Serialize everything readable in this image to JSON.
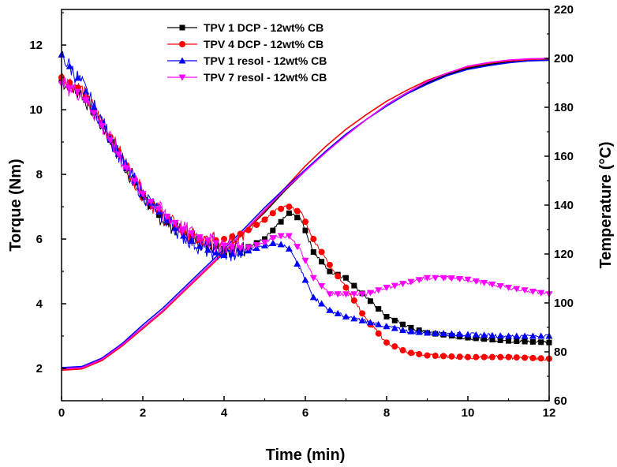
{
  "chart_data": {
    "type": "line",
    "title": "",
    "xlabel": "Time (min)",
    "ylabel_left": "Torque (Nm)",
    "ylabel_right": "Temperature (°C)",
    "xlim": [
      0,
      12
    ],
    "ylim_left": [
      1,
      13.1
    ],
    "ylim_right": [
      60,
      220
    ],
    "x_ticks": [
      0,
      2,
      4,
      6,
      8,
      10,
      12
    ],
    "y_left_ticks": [
      2,
      4,
      6,
      8,
      10,
      12
    ],
    "y_right_ticks": [
      60,
      80,
      100,
      120,
      140,
      160,
      180,
      200,
      220
    ],
    "grid": false,
    "legend_position": "top-center",
    "temperature_series": [
      {
        "name": "TPV 1 DCP - 12wt% CB",
        "color": "#000000",
        "axis": "right",
        "x": [
          0,
          0.5,
          1,
          1.5,
          2,
          2.5,
          3,
          3.5,
          4,
          4.5,
          5,
          5.5,
          6,
          6.5,
          7,
          7.5,
          8,
          8.5,
          9,
          9.5,
          10,
          10.5,
          11,
          11.5,
          12
        ],
        "y": [
          73,
          73.5,
          77,
          83,
          90,
          97,
          105,
          113,
          121,
          129,
          137,
          146,
          154,
          162,
          169,
          175,
          181,
          186,
          190,
          193.5,
          196,
          197.5,
          198.5,
          199,
          199.2
        ]
      },
      {
        "name": "TPV 4 DCP - 12wt% CB",
        "color": "#ff0000",
        "axis": "right",
        "x": [
          0,
          0.5,
          1,
          1.5,
          2,
          2.5,
          3,
          3.5,
          4,
          4.5,
          5,
          5.5,
          6,
          6.5,
          7,
          7.5,
          8,
          8.5,
          9,
          9.5,
          10,
          10.5,
          11,
          11.5,
          12
        ],
        "y": [
          72.5,
          73,
          76.5,
          82.5,
          89.5,
          96.5,
          104.5,
          112.5,
          120.5,
          129,
          137.5,
          147,
          156,
          164,
          171,
          177,
          182.5,
          187,
          191,
          194,
          196.5,
          198,
          199,
          199.5,
          199.8
        ]
      },
      {
        "name": "TPV 1 resol - 12wt% CB",
        "color": "#0000ff",
        "axis": "right",
        "x": [
          0,
          0.5,
          1,
          1.5,
          2,
          2.5,
          3,
          3.5,
          4,
          4.5,
          5,
          5.5,
          6,
          6.5,
          7,
          7.5,
          8,
          8.5,
          9,
          9.5,
          10,
          10.5,
          11,
          11.5,
          12
        ],
        "y": [
          73.5,
          74,
          77.5,
          83.5,
          91,
          98,
          106,
          114,
          122,
          130.5,
          139,
          147,
          154.5,
          162,
          169,
          175,
          180.5,
          185.5,
          189.5,
          193,
          195.5,
          197,
          198.2,
          199,
          199.3
        ]
      },
      {
        "name": "TPV 7 resol - 12wt% CB",
        "color": "#ff00ff",
        "axis": "right",
        "x": [
          0,
          0.5,
          1,
          1.5,
          2,
          2.5,
          3,
          3.5,
          4,
          4.5,
          5,
          5.5,
          6,
          6.5,
          7,
          7.5,
          8,
          8.5,
          9,
          9.5,
          10,
          10.5,
          11,
          11.5,
          12
        ],
        "y": [
          73,
          73.5,
          77,
          83,
          90,
          97,
          105,
          113,
          121,
          129.5,
          138,
          146.5,
          154,
          161.5,
          168.5,
          175,
          181,
          186,
          190.5,
          194,
          196.8,
          198.3,
          199.3,
          199.8,
          200
        ]
      }
    ],
    "series": [
      {
        "name": "TPV 1 DCP - 12wt% CB",
        "color": "#000000",
        "marker": "square",
        "axis": "left",
        "x": [
          0,
          0.5,
          1,
          1.5,
          2,
          2.5,
          3,
          3.5,
          4,
          4.5,
          5,
          5.3,
          5.6,
          5.9,
          6.2,
          6.6,
          7,
          7.5,
          8,
          8.5,
          9,
          10,
          11,
          12
        ],
        "y": [
          10.9,
          10.5,
          9.5,
          8.4,
          7.3,
          6.6,
          6.2,
          5.9,
          5.7,
          5.7,
          6.0,
          6.4,
          6.8,
          6.6,
          5.6,
          5.0,
          4.8,
          4.2,
          3.6,
          3.3,
          3.1,
          2.95,
          2.85,
          2.8
        ]
      },
      {
        "name": "TPV 4 DCP - 12wt% CB",
        "color": "#ff0000",
        "marker": "circle",
        "axis": "left",
        "x": [
          0,
          0.5,
          1,
          1.5,
          2,
          2.5,
          3,
          3.5,
          4,
          4.5,
          5,
          5.3,
          5.6,
          5.9,
          6.2,
          6.6,
          7,
          7.5,
          8,
          8.5,
          9,
          10,
          11,
          12
        ],
        "y": [
          11.0,
          10.6,
          9.6,
          8.5,
          7.4,
          6.7,
          6.2,
          5.9,
          6.0,
          6.2,
          6.6,
          6.9,
          7.0,
          6.8,
          6.0,
          5.2,
          4.5,
          3.5,
          2.8,
          2.5,
          2.4,
          2.35,
          2.35,
          2.3
        ]
      },
      {
        "name": "TPV 1 resol - 12wt% CB",
        "color": "#0000ff",
        "marker": "triangle-up",
        "axis": "left",
        "x": [
          0,
          0.5,
          1,
          1.5,
          2,
          2.5,
          3,
          3.5,
          4,
          4.5,
          5,
          5.3,
          5.6,
          5.9,
          6.2,
          6.6,
          7,
          7.5,
          8,
          8.5,
          9,
          10,
          11,
          12
        ],
        "y": [
          11.7,
          10.8,
          9.6,
          8.4,
          7.4,
          6.7,
          6.1,
          5.7,
          5.5,
          5.6,
          5.8,
          5.9,
          5.7,
          5.0,
          4.2,
          3.8,
          3.6,
          3.45,
          3.3,
          3.15,
          3.1,
          3.05,
          3.0,
          3.0
        ]
      },
      {
        "name": "TPV 7 resol - 12wt% CB",
        "color": "#ff00ff",
        "marker": "triangle-down",
        "axis": "left",
        "x": [
          0,
          0.5,
          1,
          1.5,
          2,
          2.5,
          3,
          3.5,
          4,
          4.5,
          5,
          5.3,
          5.6,
          5.9,
          6.2,
          6.6,
          7,
          7.5,
          8,
          8.5,
          9,
          9.5,
          10,
          11,
          12
        ],
        "y": [
          10.8,
          10.5,
          9.5,
          8.4,
          7.4,
          6.8,
          6.3,
          6.0,
          5.8,
          5.7,
          5.9,
          6.1,
          6.1,
          5.6,
          4.8,
          4.3,
          4.3,
          4.3,
          4.5,
          4.65,
          4.8,
          4.8,
          4.75,
          4.5,
          4.3
        ]
      }
    ]
  }
}
